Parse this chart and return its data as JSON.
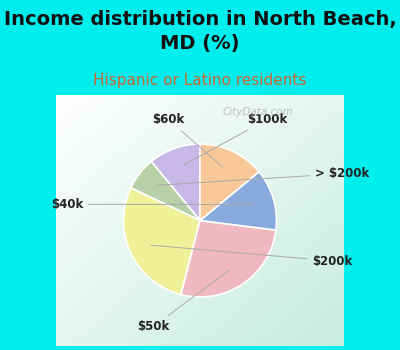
{
  "title": "Income distribution in North Beach,\nMD (%)",
  "subtitle": "Hispanic or Latino residents",
  "slices": [
    {
      "label": "$100k",
      "value": 11,
      "color": "#c8b8e8"
    },
    {
      "label": "> $200k",
      "value": 7,
      "color": "#b8d0a8"
    },
    {
      "label": "$200k",
      "value": 28,
      "color": "#f0f098"
    },
    {
      "label": "$50k",
      "value": 27,
      "color": "#f0b8c0"
    },
    {
      "label": "$40k",
      "value": 13,
      "color": "#88aadd"
    },
    {
      "label": "$60k",
      "value": 14,
      "color": "#f8c898"
    }
  ],
  "start_angle": 90,
  "title_fontsize": 14,
  "subtitle_fontsize": 11,
  "label_fontsize": 8.5,
  "bg_color_top": "#00eeee",
  "watermark": "CityData.com",
  "subtitle_color": "#cc6633"
}
